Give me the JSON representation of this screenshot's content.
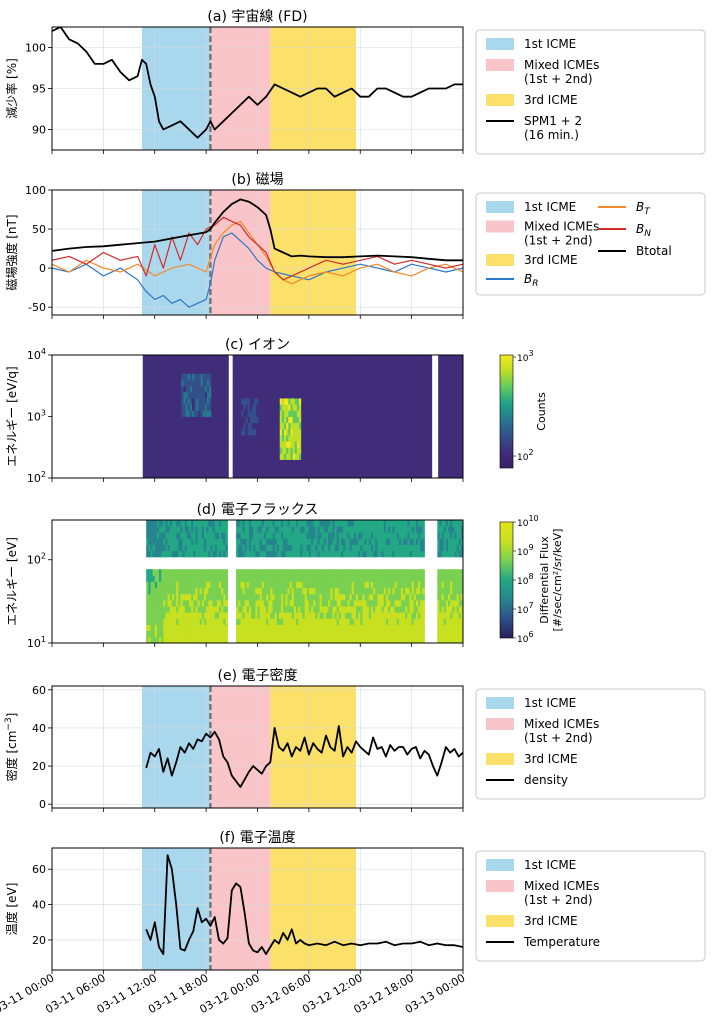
{
  "figure": {
    "x_tick_labels": [
      "03-11 00:00",
      "03-11 06:00",
      "03-11 12:00",
      "03-11 18:00",
      "03-12 00:00",
      "03-12 06:00",
      "03-12 12:00",
      "03-12 18:00",
      "03-13 00:00"
    ],
    "x_range_hours": [
      0,
      48
    ],
    "regions": {
      "first_icme": [
        10.5,
        18.5
      ],
      "mixed_icmes": [
        18.5,
        25.5
      ],
      "third_icme": [
        25.5,
        35.5
      ],
      "divider_hour": 18.5
    },
    "colors": {
      "first_icme": "#a9d8ee",
      "mixed_icmes": "#fac5c9",
      "third_icme": "#fbe06a",
      "divider": "#777777",
      "bt": "#f08a2a",
      "bn": "#d22a2a",
      "br": "#2a78c8",
      "line": "#000000"
    }
  },
  "chart_data": [
    {
      "id": "a",
      "type": "line",
      "title": "(a) 宇宙線 (FD)",
      "ylabel": "減少率 [%]",
      "ylim": [
        87.5,
        102.5
      ],
      "yticks": [
        90,
        95,
        100
      ],
      "series": [
        {
          "name": "SPM1 + 2",
          "color": "#000000",
          "x": [
            0,
            1,
            2,
            3,
            4,
            5,
            6,
            7,
            8,
            9,
            10,
            10.5,
            11,
            11.5,
            12,
            12.5,
            13,
            14,
            15,
            16,
            17,
            18,
            18.5,
            19,
            20,
            21,
            22,
            23,
            24,
            25,
            26,
            27,
            28,
            29,
            30,
            31,
            32,
            33,
            34,
            35,
            36,
            37,
            38,
            39,
            40,
            41,
            42,
            43,
            44,
            45,
            46,
            47,
            48
          ],
          "y": [
            102,
            102.5,
            101,
            100.5,
            99.5,
            98,
            98,
            98.5,
            97,
            96,
            96.5,
            98.5,
            98,
            95.5,
            94,
            91,
            90,
            90.5,
            91,
            90,
            89,
            90,
            91,
            90,
            91,
            92,
            93,
            94,
            93,
            94,
            95.5,
            95,
            94.5,
            94,
            94.5,
            95,
            95,
            94,
            94.5,
            95,
            94,
            94,
            95,
            95,
            94.5,
            94,
            94,
            94.5,
            95,
            95,
            95,
            95.5,
            95.5
          ]
        }
      ],
      "legend": [
        {
          "kind": "patch",
          "color": "#a9d8ee",
          "label": "1st ICME"
        },
        {
          "kind": "patch",
          "color": "#fac5c9",
          "label": "Mixed ICMEs",
          "label2": "(1st + 2nd)"
        },
        {
          "kind": "patch",
          "color": "#fbe06a",
          "label": "3rd ICME"
        },
        {
          "kind": "line",
          "color": "#000000",
          "label": "SPM1 + 2",
          "label2": "(16 min.)"
        }
      ]
    },
    {
      "id": "b",
      "type": "line",
      "title": "(b) 磁場",
      "ylabel": "磁場強度 [nT]",
      "ylim": [
        -60,
        100
      ],
      "yticks": [
        -50,
        0,
        50,
        100
      ],
      "series": [
        {
          "name": "Btotal",
          "color": "#000000",
          "x": [
            0,
            2,
            4,
            6,
            8,
            10,
            12,
            14,
            16,
            18,
            18.5,
            19,
            20,
            21,
            22,
            23,
            24,
            25,
            25.5,
            26,
            27,
            28,
            29,
            30,
            32,
            34,
            36,
            38,
            40,
            42,
            44,
            46,
            48
          ],
          "y": [
            22,
            25,
            27,
            28,
            30,
            32,
            34,
            38,
            42,
            46,
            50,
            58,
            72,
            82,
            88,
            85,
            78,
            68,
            50,
            25,
            20,
            15,
            16,
            15,
            14,
            14,
            15,
            16,
            15,
            14,
            12,
            10,
            10
          ]
        },
        {
          "name": "B_T",
          "color": "#f08a2a",
          "x": [
            0,
            2,
            4,
            6,
            8,
            10,
            12,
            14,
            16,
            18,
            19,
            20,
            21,
            22,
            23,
            24,
            25,
            26,
            27,
            28,
            30,
            32,
            34,
            36,
            38,
            40,
            42,
            44,
            46,
            48
          ],
          "y": [
            5,
            -5,
            10,
            0,
            -5,
            5,
            -10,
            0,
            5,
            -5,
            30,
            45,
            55,
            60,
            45,
            30,
            15,
            -5,
            -15,
            -20,
            -10,
            -5,
            -10,
            0,
            5,
            -5,
            -10,
            0,
            5,
            -5
          ]
        },
        {
          "name": "B_N",
          "color": "#d22a2a",
          "x": [
            0,
            2,
            4,
            6,
            8,
            10,
            11,
            12,
            13,
            14,
            15,
            16,
            17,
            18,
            19,
            20,
            21,
            22,
            23,
            24,
            25,
            26,
            27,
            28,
            30,
            32,
            34,
            36,
            38,
            40,
            42,
            44,
            46,
            48
          ],
          "y": [
            10,
            15,
            5,
            20,
            10,
            15,
            -10,
            30,
            0,
            40,
            10,
            45,
            30,
            50,
            55,
            65,
            60,
            55,
            40,
            30,
            20,
            -5,
            -15,
            -10,
            0,
            10,
            5,
            10,
            15,
            5,
            10,
            5,
            0,
            5
          ]
        },
        {
          "name": "B_R",
          "color": "#2a78c8",
          "x": [
            0,
            2,
            4,
            6,
            8,
            10,
            11,
            12,
            13,
            14,
            15,
            16,
            17,
            18,
            18.5,
            19,
            20,
            21,
            22,
            23,
            24,
            25,
            26,
            28,
            30,
            32,
            34,
            36,
            38,
            40,
            42,
            44,
            46,
            48
          ],
          "y": [
            0,
            -5,
            5,
            -10,
            0,
            -15,
            -30,
            -40,
            -35,
            -45,
            -40,
            -50,
            -45,
            -40,
            -20,
            10,
            40,
            45,
            35,
            25,
            10,
            0,
            -5,
            -10,
            -15,
            -5,
            0,
            5,
            0,
            -5,
            5,
            0,
            -5,
            0
          ]
        }
      ],
      "legend": [
        {
          "kind": "patch",
          "color": "#a9d8ee",
          "label": "1st ICME"
        },
        {
          "kind": "patch",
          "color": "#fac5c9",
          "label": "Mixed ICMEs",
          "label2": "(1st + 2nd)"
        },
        {
          "kind": "patch",
          "color": "#fbe06a",
          "label": "3rd ICME"
        },
        {
          "kind": "line",
          "color": "#2a78c8",
          "label": "B",
          "sub": "R"
        },
        {
          "kind": "line",
          "color": "#f08a2a",
          "label": "B",
          "sub": "T"
        },
        {
          "kind": "line",
          "color": "#d22a2a",
          "label": "B",
          "sub": "N"
        },
        {
          "kind": "line",
          "color": "#000000",
          "label": "Btotal"
        }
      ]
    },
    {
      "id": "c",
      "type": "heatmap",
      "title": "(c) イオン",
      "ylabel": "エネルギー [eV/q]",
      "yscale": "log",
      "ylim": [
        100,
        10000
      ],
      "ytick_labels": [
        {
          "base": "10",
          "exp": "2"
        },
        {
          "base": "10",
          "exp": "3"
        },
        {
          "base": "10",
          "exp": "4"
        }
      ],
      "data_range_hours": [
        10.6,
        48
      ],
      "gaps_hours": [
        [
          20.5,
          21.0
        ],
        [
          44.2,
          45.0
        ]
      ],
      "hotspots": [
        {
          "x": [
            26.5,
            29.0
          ],
          "y": [
            200,
            2000
          ],
          "level": 0.95
        },
        {
          "x": [
            15.0,
            18.5
          ],
          "y": [
            1000,
            5000
          ],
          "level": 0.45
        },
        {
          "x": [
            22.0,
            24.0
          ],
          "y": [
            500,
            2000
          ],
          "level": 0.35
        }
      ],
      "colorbar": {
        "label": "Counts",
        "scale": "log",
        "tick_labels": [
          {
            "base": "10",
            "exp": "2"
          },
          {
            "base": "10",
            "exp": "3"
          }
        ]
      }
    },
    {
      "id": "d",
      "type": "heatmap",
      "title": "(d) 電子フラックス",
      "ylabel": "エネルギー [eV]",
      "yscale": "log",
      "ylim": [
        10,
        300
      ],
      "ytick_labels": [
        {
          "base": "10",
          "exp": "1"
        },
        {
          "base": "10",
          "exp": "2"
        }
      ],
      "data_range_hours": [
        11.0,
        48
      ],
      "gaps_hours": [
        [
          20.5,
          21.5
        ],
        [
          43.5,
          44.8
        ]
      ],
      "band_gap_ev": [
        75,
        100
      ],
      "colorbar": {
        "label": "Differential Flux",
        "label2": "[#/sec/cm²/sr/keV]",
        "scale": "log",
        "tick_labels": [
          {
            "base": "10",
            "exp": "6"
          },
          {
            "base": "10",
            "exp": "7"
          },
          {
            "base": "10",
            "exp": "8"
          },
          {
            "base": "10",
            "exp": "9"
          },
          {
            "base": "10",
            "exp": "10"
          }
        ]
      }
    },
    {
      "id": "e",
      "type": "line",
      "title": "(e) 電子密度",
      "ylabel": "密度 [cm",
      "ylabel_sup": "−3",
      "ylabel_tail": "]",
      "ylim": [
        -2,
        62
      ],
      "yticks": [
        0,
        20,
        40,
        60
      ],
      "series": [
        {
          "name": "density",
          "color": "#000000",
          "x": [
            11,
            11.5,
            12,
            12.5,
            13,
            13.5,
            14,
            14.5,
            15,
            15.5,
            16,
            16.5,
            17,
            17.5,
            18,
            18.5,
            19,
            19.5,
            20,
            20.5,
            21,
            21.5,
            22,
            22.5,
            23,
            23.5,
            24,
            24.5,
            25,
            25.5,
            26,
            26.5,
            27,
            27.5,
            28,
            28.5,
            29,
            29.5,
            30,
            30.5,
            31,
            31.5,
            32,
            32.5,
            33,
            33.5,
            34,
            34.5,
            35,
            35.5,
            36,
            36.5,
            37,
            37.5,
            38,
            38.5,
            39,
            39.5,
            40,
            40.5,
            41,
            41.5,
            42,
            42.5,
            43,
            43.5,
            44,
            44.5,
            45,
            45.5,
            46,
            46.5,
            47,
            47.5,
            48
          ],
          "y": [
            19,
            27,
            25,
            29,
            17,
            24,
            15,
            22,
            30,
            27,
            32,
            29,
            34,
            33,
            37,
            35,
            38,
            34,
            25,
            22,
            15,
            12,
            9,
            13,
            17,
            20,
            18,
            16,
            20,
            22,
            40,
            30,
            28,
            32,
            25,
            30,
            28,
            35,
            26,
            32,
            29,
            27,
            36,
            30,
            28,
            41,
            25,
            30,
            27,
            33,
            30,
            28,
            26,
            35,
            29,
            30,
            25,
            31,
            28,
            30,
            30,
            26,
            29,
            30,
            24,
            28,
            26,
            20,
            15,
            22,
            30,
            27,
            29,
            25,
            27
          ]
        }
      ],
      "legend": [
        {
          "kind": "patch",
          "color": "#a9d8ee",
          "label": "1st ICME"
        },
        {
          "kind": "patch",
          "color": "#fac5c9",
          "label": "Mixed ICMEs",
          "label2": "(1st + 2nd)"
        },
        {
          "kind": "patch",
          "color": "#fbe06a",
          "label": "3rd ICME"
        },
        {
          "kind": "line",
          "color": "#000000",
          "label": "density"
        }
      ]
    },
    {
      "id": "f",
      "type": "line",
      "title": "(f) 電子温度",
      "ylabel": "温度 [eV]",
      "ylim": [
        3,
        72
      ],
      "yticks": [
        20,
        40,
        60
      ],
      "xtick_labels_visible": true,
      "series": [
        {
          "name": "Temperature",
          "color": "#000000",
          "x": [
            11,
            11.5,
            12,
            12.5,
            13,
            13.5,
            14,
            14.5,
            15,
            15.5,
            16,
            16.5,
            17,
            17.5,
            18,
            18.5,
            19,
            19.5,
            20,
            20.5,
            21,
            21.5,
            22,
            22.5,
            23,
            23.5,
            24,
            24.5,
            25,
            25.5,
            26,
            26.5,
            27,
            27.5,
            28,
            28.5,
            29,
            29.5,
            30,
            31,
            32,
            33,
            34,
            35,
            36,
            37,
            38,
            39,
            40,
            41,
            42,
            43,
            44,
            45,
            46,
            47,
            48
          ],
          "y": [
            26,
            20,
            30,
            16,
            12,
            68,
            60,
            40,
            15,
            14,
            20,
            25,
            38,
            30,
            32,
            28,
            33,
            20,
            18,
            21,
            48,
            52,
            50,
            35,
            18,
            14,
            13,
            16,
            12,
            16,
            20,
            18,
            24,
            20,
            26,
            18,
            20,
            18,
            17,
            18,
            17,
            19,
            17,
            18,
            17,
            18,
            18,
            19,
            17,
            18,
            18,
            19,
            17,
            18,
            17,
            17,
            16
          ]
        }
      ],
      "legend": [
        {
          "kind": "patch",
          "color": "#a9d8ee",
          "label": "1st ICME"
        },
        {
          "kind": "patch",
          "color": "#fac5c9",
          "label": "Mixed ICMEs",
          "label2": "(1st + 2nd)"
        },
        {
          "kind": "patch",
          "color": "#fbe06a",
          "label": "3rd ICME"
        },
        {
          "kind": "line",
          "color": "#000000",
          "label": "Temperature"
        }
      ]
    }
  ]
}
